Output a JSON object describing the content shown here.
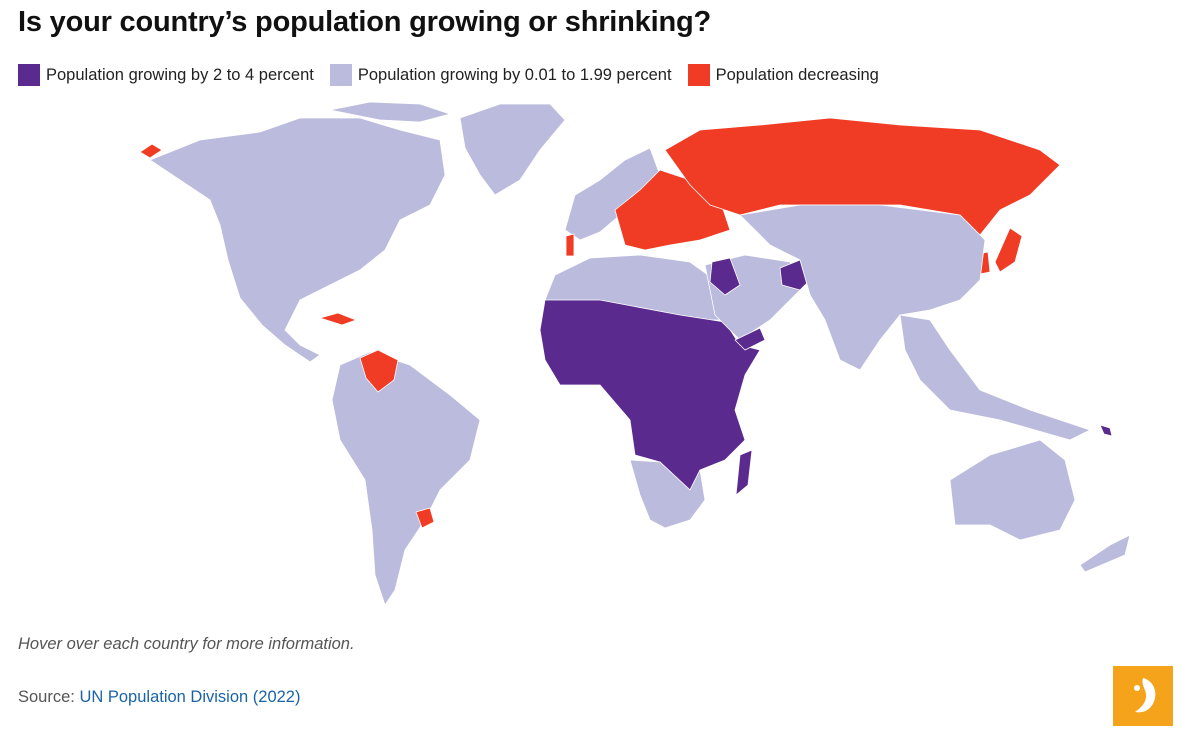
{
  "title": "Is your country’s population growing or shrinking?",
  "legend": [
    {
      "label": "Population growing by 2 to 4 percent",
      "color": "#5b2a8e"
    },
    {
      "label": "Population growing by 0.01 to 1.99 percent",
      "color": "#bbbbdd"
    },
    {
      "label": "Population decreasing",
      "color": "#f03c24"
    }
  ],
  "note": "Hover over each country for more information.",
  "source": {
    "prefix": "Source: ",
    "link": "UN Population Division (2022)"
  },
  "colors": {
    "high": "#5b2a8e",
    "mid": "#bbbbdd",
    "decline": "#f03c24",
    "border": "#ffffff"
  }
}
